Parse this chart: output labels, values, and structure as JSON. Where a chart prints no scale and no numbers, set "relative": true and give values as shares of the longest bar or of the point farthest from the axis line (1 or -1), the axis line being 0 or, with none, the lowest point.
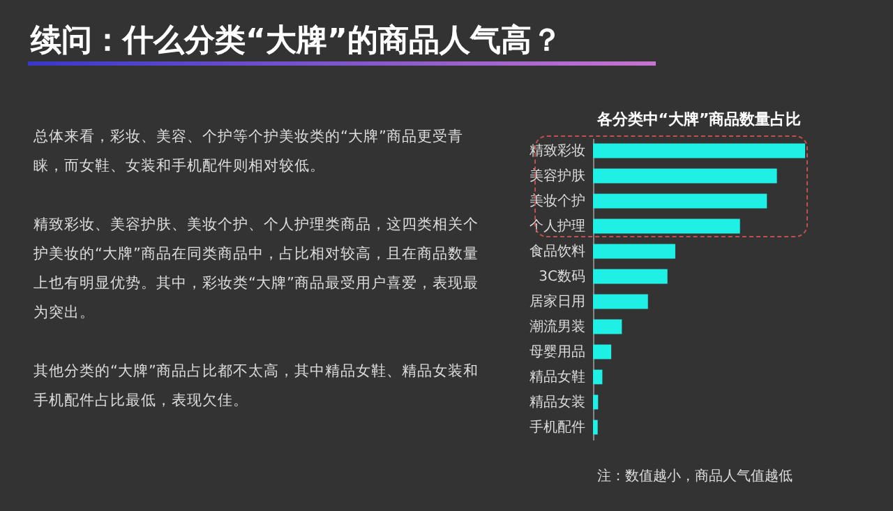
{
  "chart_data": {
    "type": "bar",
    "orientation": "horizontal",
    "relative": true,
    "title": "续问：什么分类“大牌”的商品人气高？",
    "subtitle": "各分类中“大牌”商品数量占比",
    "categories": [
      "精致彩妆",
      "美容护肤",
      "美妆个护",
      "个人护理",
      "食品饮料",
      "3C数码",
      "居家日用",
      "潮流男装",
      "母婴用品",
      "精品女鞋",
      "精品女装",
      "手机配件"
    ],
    "values": [
      1,
      0.867,
      0.82,
      0.693,
      0.388,
      0.351,
      0.259,
      0.136,
      0.086,
      0.044,
      0.024,
      0.022
    ],
    "color": "#1ef0e6",
    "annotations": [
      "总体来看，彩妆、美容、个护等个护美妆类的“大牌”商品更受青睐，而女鞋、女装和手机配件则相对较低。",
      "精致彩妆、美容护肤、美妆个护、个人护理类商品，这四类相关个护美妆的“大牌”商品在同类商品中，占比相对较高，且在商品数量上也有明显优势。其中，彩妆类“大牌”商品最受用户喜爱，表现最为突出。",
      "其他分类的“大牌”商品占比都不太高，其中精品女鞋、精品女装和手机配件占比最低，表现欠佳。",
      "注：数值越小，商品人气值越低"
    ]
  }
}
